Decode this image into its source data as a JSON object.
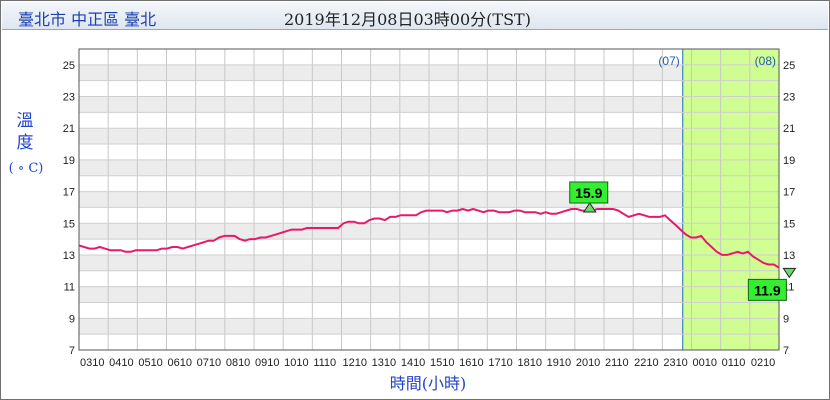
{
  "header": {
    "location": "臺北市 中正區 臺北",
    "datetime": "2019年12月08日03時00分(TST)"
  },
  "chart_data": {
    "type": "line",
    "title": "",
    "ylabel_chars": [
      "溫",
      "度"
    ],
    "yunit": "( ∘ C)",
    "xlabel": "時間(小時)",
    "ylim": [
      7,
      26
    ],
    "yticks": [
      7,
      9,
      11,
      13,
      15,
      17,
      19,
      21,
      23,
      25
    ],
    "x_tick_labels": [
      "0310",
      "0410",
      "0510",
      "0610",
      "0710",
      "0810",
      "0910",
      "1010",
      "1110",
      "1210",
      "1310",
      "1410",
      "1510",
      "1610",
      "1710",
      "1810",
      "1910",
      "2010",
      "2110",
      "2210",
      "2310",
      "0010",
      "0110",
      "0210"
    ],
    "day_labels": [
      "(07)",
      "(08)"
    ],
    "day_boundary_index": 20.7,
    "grid": true,
    "x_count": 24,
    "series": [
      {
        "color": "#e8196a",
        "values": [
          13.6,
          13.5,
          13.4,
          13.4,
          13.5,
          13.4,
          13.3,
          13.3,
          13.3,
          13.2,
          13.2,
          13.3,
          13.3,
          13.3,
          13.3,
          13.3,
          13.4,
          13.4,
          13.5,
          13.5,
          13.4,
          13.5,
          13.6,
          13.7,
          13.8,
          13.9,
          13.9,
          14.1,
          14.2,
          14.2,
          14.2,
          14.0,
          13.9,
          14.0,
          14.0,
          14.1,
          14.1,
          14.2,
          14.3,
          14.4,
          14.5,
          14.6,
          14.6,
          14.6,
          14.7,
          14.7,
          14.7,
          14.7,
          14.7,
          14.7,
          14.7,
          15.0,
          15.1,
          15.1,
          15.0,
          15.0,
          15.2,
          15.3,
          15.3,
          15.2,
          15.4,
          15.4,
          15.5,
          15.5,
          15.5,
          15.5,
          15.7,
          15.8,
          15.8,
          15.8,
          15.8,
          15.7,
          15.8,
          15.8,
          15.9,
          15.8,
          15.9,
          15.8,
          15.7,
          15.8,
          15.8,
          15.7,
          15.7,
          15.7,
          15.8,
          15.8,
          15.7,
          15.7,
          15.7,
          15.6,
          15.7,
          15.6,
          15.6,
          15.7,
          15.8,
          15.9,
          15.9,
          15.8,
          15.8,
          15.8,
          15.9,
          15.9,
          15.9,
          15.9,
          15.8,
          15.6,
          15.4,
          15.5,
          15.6,
          15.5,
          15.4,
          15.4,
          15.4,
          15.5,
          15.2,
          14.9,
          14.6,
          14.3,
          14.1,
          14.1,
          14.2,
          13.8,
          13.5,
          13.2,
          13.0,
          13.0,
          13.1,
          13.2,
          13.1,
          13.2,
          12.9,
          12.7,
          12.5,
          12.4,
          12.4,
          12.2
        ]
      }
    ],
    "annotations": [
      {
        "label": "15.9",
        "type": "max",
        "index": 98.5,
        "value": 15.9
      },
      {
        "label": "11.9",
        "type": "min",
        "index": 137,
        "value": 11.9
      }
    ]
  }
}
